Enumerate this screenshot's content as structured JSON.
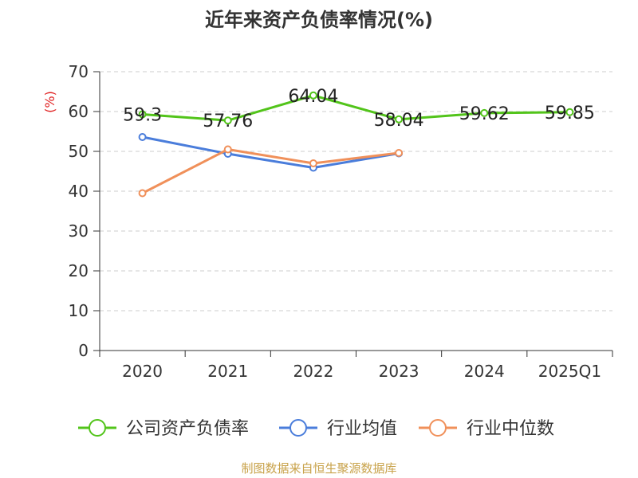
{
  "chart_data": {
    "type": "line",
    "title": "近年来资产负债率情况(%)",
    "ylabel": "(%)",
    "xlabel": "",
    "categories": [
      "2020",
      "2021",
      "2022",
      "2023",
      "2024",
      "2025Q1"
    ],
    "ylim": [
      0,
      70
    ],
    "yticks": [
      0,
      10,
      20,
      30,
      40,
      50,
      60,
      70
    ],
    "grid": true,
    "legend_position": "bottom",
    "series": [
      {
        "name": "公司资产负债率",
        "color": "#52c41a",
        "values": [
          59.3,
          57.76,
          64.04,
          58.04,
          59.62,
          59.85
        ],
        "labels": [
          "59.3",
          "57.76",
          "64.04",
          "58.04",
          "59.62",
          "59.85"
        ]
      },
      {
        "name": "行业均值",
        "color": "#4a7ddb",
        "values": [
          53.6,
          49.4,
          45.9,
          49.5,
          null,
          null
        ]
      },
      {
        "name": "行业中位数",
        "color": "#f0905a",
        "values": [
          39.5,
          50.5,
          47.0,
          49.6,
          null,
          null
        ]
      }
    ],
    "source": "制图数据来自恒生聚源数据库"
  }
}
